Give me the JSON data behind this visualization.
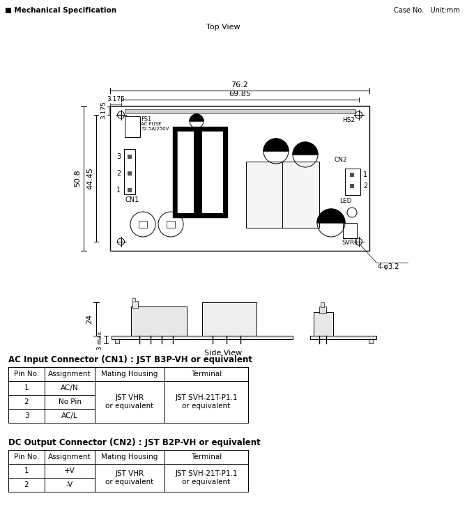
{
  "title_left": "Mechanical Specification",
  "title_right": "Case No.   Unit:mm",
  "top_view_label": "Top View",
  "side_view_label": "Side View",
  "dim_762": "76.2",
  "dim_6985": "69.85",
  "dim_3175_top": "3.175",
  "dim_3175_left": "3.175",
  "dim_508": "50.8",
  "dim_4445": "44.45",
  "dim_4phi32": "4-φ3.2",
  "dim_24": "24",
  "dim_3max": "3 max.",
  "ac_title": "AC Input Connector (CN1) : JST B3P-VH or equivalent",
  "ac_headers": [
    "Pin No.",
    "Assignment",
    "Mating Housing",
    "Terminal"
  ],
  "ac_rows": [
    [
      "1",
      "AC/N",
      "JST VHR\nor equivalent",
      "JST SVH-21T-P1.1\nor equivalent"
    ],
    [
      "2",
      "No Pin",
      "",
      ""
    ],
    [
      "3",
      "AC/L",
      "",
      ""
    ]
  ],
  "dc_title": "DC Output Connector (CN2) : JST B2P-VH or equivalent",
  "dc_headers": [
    "Pin No.",
    "Assignment",
    "Mating Housing",
    "Terminal"
  ],
  "dc_rows": [
    [
      "1",
      "+V",
      "JST VHR\nor equivalent",
      "JST SVH-21T-P1.1\nor equivalent"
    ],
    [
      "2",
      "-V",
      "",
      ""
    ]
  ]
}
